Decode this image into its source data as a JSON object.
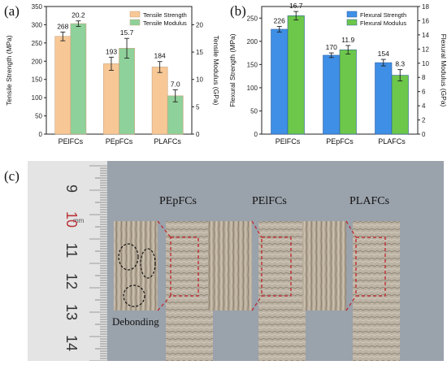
{
  "panels": {
    "a": "(a)",
    "b": "(b)",
    "c": "(c)"
  },
  "colors": {
    "tensile_strength": "#f7c896",
    "tensile_modulus": "#8ed19a",
    "flexural_strength": "#3f8fe6",
    "flexural_modulus": "#6cc74a",
    "photo_background": "#9aa2ab",
    "ruler": "#e4e4e4",
    "markers": "#c0222a"
  },
  "chart_data": [
    {
      "type": "bar",
      "panel": "(a)",
      "categories": [
        "PElFCs",
        "PEpFCs",
        "PLAFCs"
      ],
      "ylabel": "Tensile Strength (MPa)",
      "y2label": "Tensile Modulus (GPa)",
      "ylim": [
        0,
        350
      ],
      "y2lim": [
        0,
        23.33
      ],
      "yticks": [
        0,
        50,
        100,
        150,
        200,
        250,
        300,
        350
      ],
      "y2ticks": [
        0,
        5,
        10,
        15,
        20
      ],
      "legend_position": "top-right",
      "series": [
        {
          "name": "Tensile Strength",
          "axis": "left",
          "values": [
            268,
            193,
            184
          ],
          "labels": [
            "268",
            "193",
            "184"
          ],
          "errors": [
            12,
            18,
            15
          ]
        },
        {
          "name": "Tensile Modulus",
          "axis": "right",
          "values": [
            20.2,
            15.7,
            7.0
          ],
          "labels": [
            "20.2",
            "15.7",
            "7.0"
          ],
          "errors": [
            0.5,
            1.8,
            1.1
          ]
        }
      ]
    },
    {
      "type": "bar",
      "panel": "(b)",
      "categories": [
        "PElFCs",
        "PEpFCs",
        "PLAFCs"
      ],
      "ylabel": "Flexural Strength (MPa)",
      "y2label": "Flexural  Modulus (GPa)",
      "ylim": [
        0,
        275
      ],
      "y2lim": [
        0,
        18
      ],
      "yticks": [
        0,
        50,
        100,
        150,
        200,
        250
      ],
      "y2ticks": [
        0,
        2,
        4,
        6,
        8,
        10,
        12,
        14,
        16,
        18
      ],
      "legend_position": "top-right",
      "series": [
        {
          "name": "Flexural Strength",
          "axis": "left",
          "values": [
            226,
            170,
            154
          ],
          "labels": [
            "226",
            "170",
            "154"
          ],
          "errors": [
            6,
            5,
            7
          ]
        },
        {
          "name": "Flexural  Modulus",
          "axis": "right",
          "values": [
            16.7,
            11.9,
            8.3
          ],
          "labels": [
            "16.7",
            "11.9",
            "8.3"
          ],
          "errors": [
            0.6,
            0.6,
            0.8
          ]
        }
      ]
    }
  ],
  "photo": {
    "samples": [
      "PEpFCs",
      "PElFCs",
      "PLAFCs"
    ],
    "annotation": "Debonding",
    "ruler_numbers": [
      "9",
      "10",
      "11",
      "12",
      "13",
      "14"
    ],
    "ruler_unit": "mm"
  }
}
